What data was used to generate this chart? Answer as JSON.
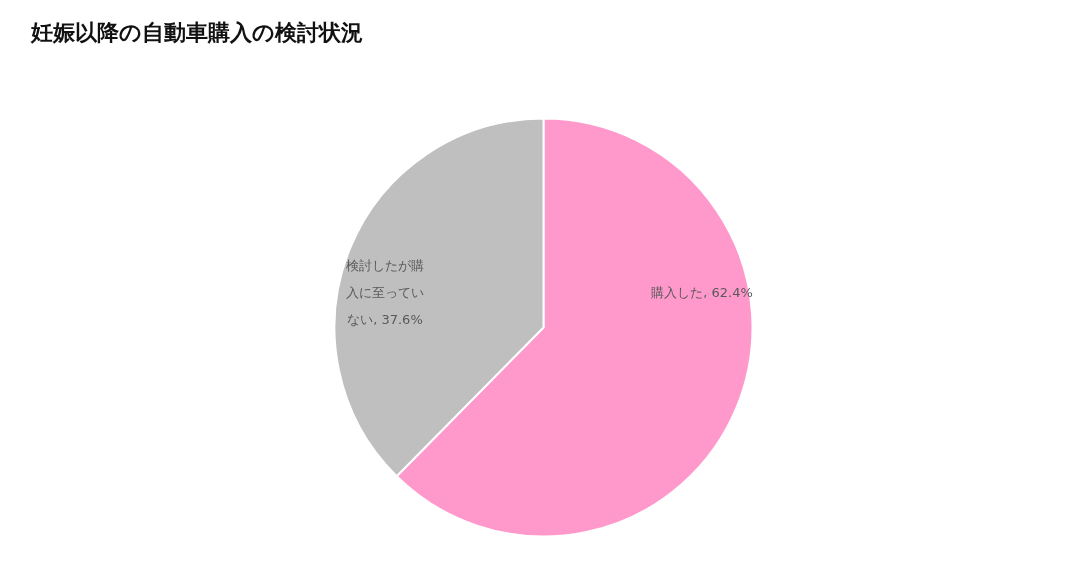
{
  "chart_data": {
    "type": "pie",
    "title": "妊娠以降の自動車購入の検討状況",
    "categories": [
      "購入した",
      "検討したが購入に至っていない"
    ],
    "values": [
      62.4,
      37.6
    ],
    "colors": [
      "#ff99cc",
      "#bfbfbf"
    ],
    "value_labels": [
      "62.4%",
      "37.6%"
    ]
  }
}
